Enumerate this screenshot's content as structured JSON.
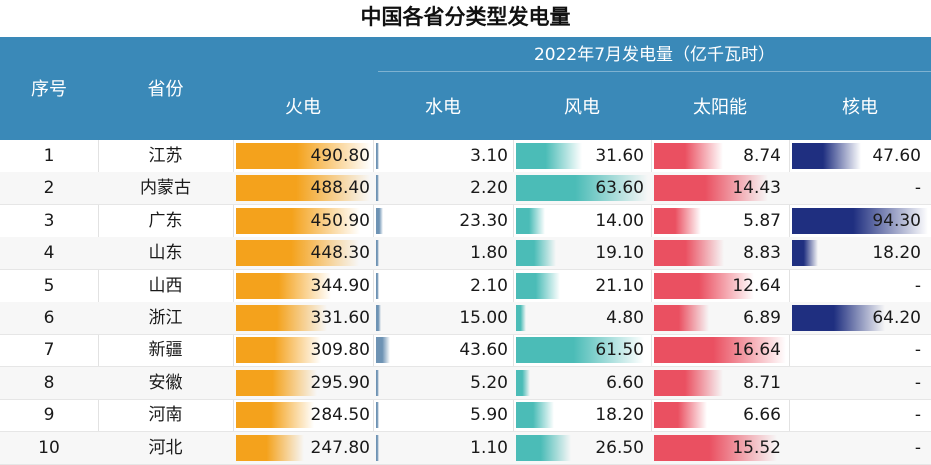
{
  "title": "中国各省分类型发电量",
  "header": {
    "index_label": "序号",
    "province_label": "省份",
    "group_label": "2022年7月发电量（亿千瓦时）",
    "columns": [
      "火电",
      "水电",
      "风电",
      "太阳能",
      "核电"
    ]
  },
  "colors": {
    "header_bg": "#3a89b8",
    "thermal": "#f4a21c",
    "hydro": "#6e93b4",
    "wind": "#4bbcb7",
    "solar": "#ea5061",
    "nuclear": "#1f2f80"
  },
  "chart_data": {
    "type": "table",
    "title": "中国各省分类型发电量",
    "subtitle": "2022年7月发电量（亿千瓦时）",
    "columns": [
      "序号",
      "省份",
      "火电",
      "水电",
      "风电",
      "太阳能",
      "核电"
    ],
    "rows": [
      {
        "index": "1",
        "province": "江苏",
        "thermal": "490.80",
        "hydro": "3.10",
        "wind": "31.60",
        "solar": "8.74",
        "nuclear": "47.60"
      },
      {
        "index": "2",
        "province": "内蒙古",
        "thermal": "488.40",
        "hydro": "2.20",
        "wind": "63.60",
        "solar": "14.43",
        "nuclear": "-"
      },
      {
        "index": "3",
        "province": "广东",
        "thermal": "450.90",
        "hydro": "23.30",
        "wind": "14.00",
        "solar": "5.87",
        "nuclear": "94.30"
      },
      {
        "index": "4",
        "province": "山东",
        "thermal": "448.30",
        "hydro": "1.80",
        "wind": "19.10",
        "solar": "8.83",
        "nuclear": "18.20"
      },
      {
        "index": "5",
        "province": "山西",
        "thermal": "344.90",
        "hydro": "2.10",
        "wind": "21.10",
        "solar": "12.64",
        "nuclear": "-"
      },
      {
        "index": "6",
        "province": "浙江",
        "thermal": "331.60",
        "hydro": "15.00",
        "wind": "4.80",
        "solar": "6.89",
        "nuclear": "64.20"
      },
      {
        "index": "7",
        "province": "新疆",
        "thermal": "309.80",
        "hydro": "43.60",
        "wind": "61.50",
        "solar": "16.64",
        "nuclear": "-"
      },
      {
        "index": "8",
        "province": "安徽",
        "thermal": "295.90",
        "hydro": "5.20",
        "wind": "6.60",
        "solar": "8.71",
        "nuclear": "-"
      },
      {
        "index": "9",
        "province": "河南",
        "thermal": "284.50",
        "hydro": "5.90",
        "wind": "18.20",
        "solar": "6.66",
        "nuclear": "-"
      },
      {
        "index": "10",
        "province": "河北",
        "thermal": "247.80",
        "hydro": "1.10",
        "wind": "26.50",
        "solar": "15.52",
        "nuclear": "-"
      }
    ]
  }
}
